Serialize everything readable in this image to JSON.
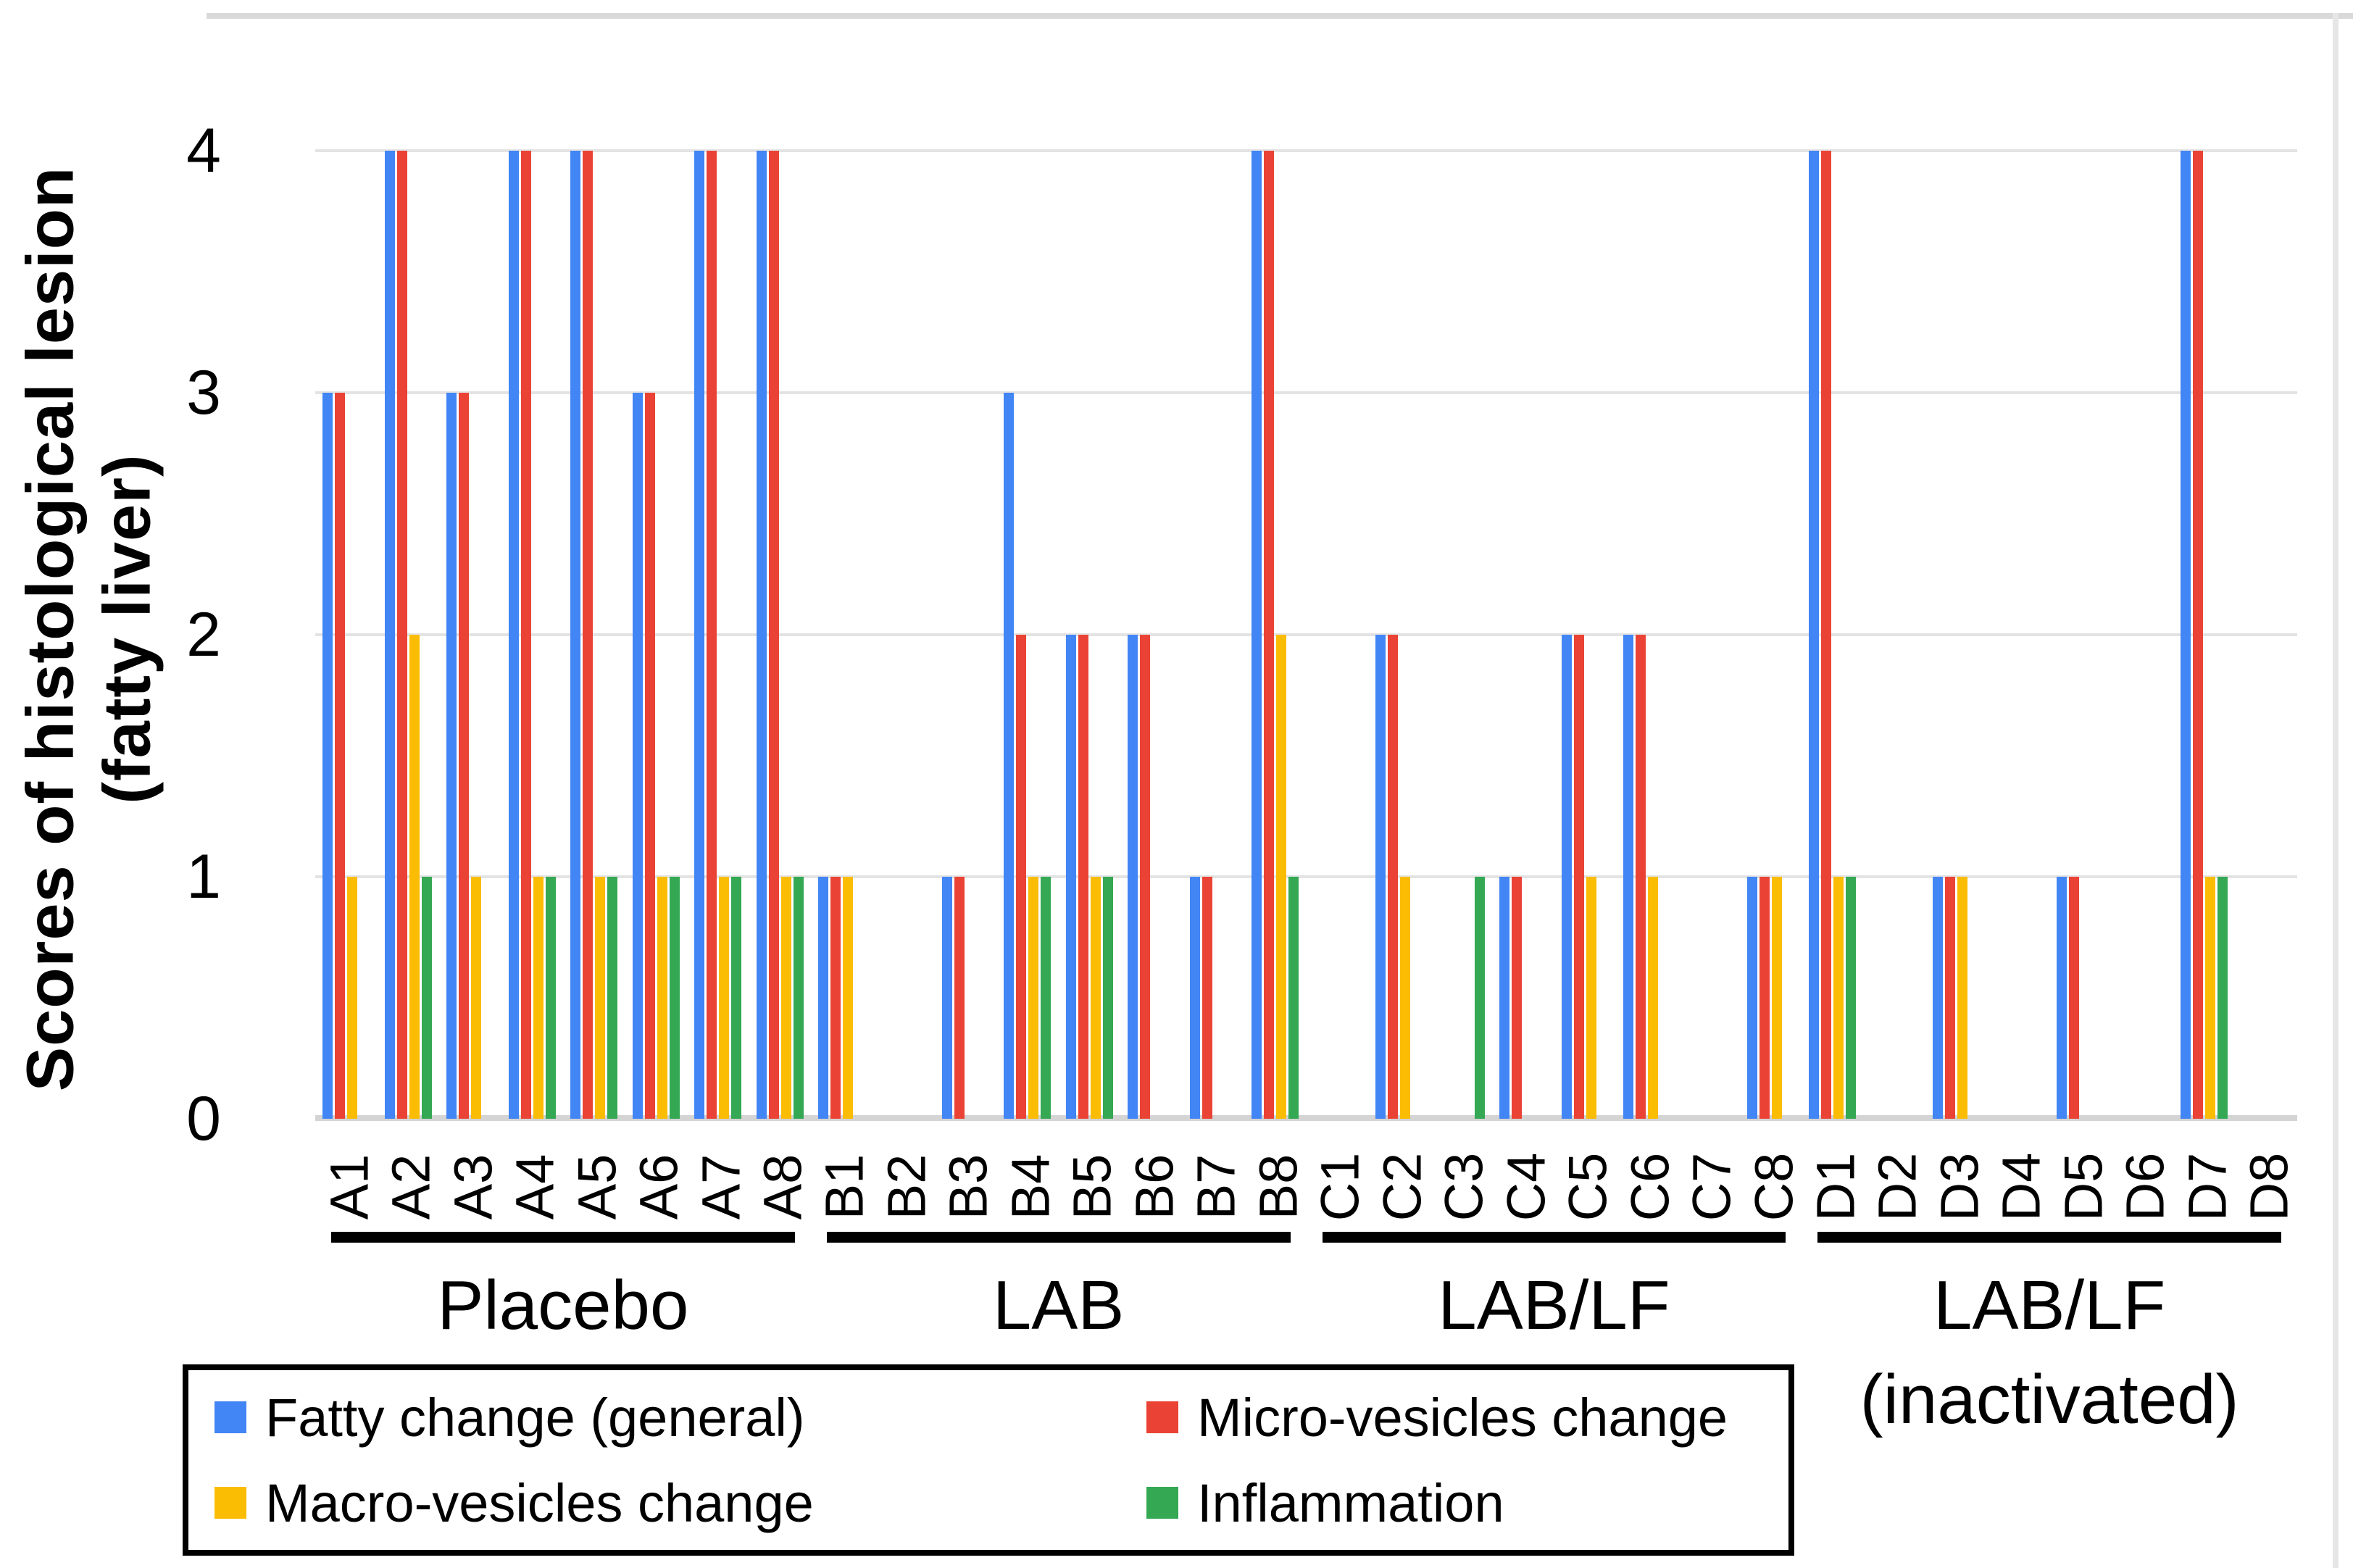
{
  "chart_data": {
    "type": "bar",
    "title": "",
    "ylabel_line1": "Scores of histological lesion",
    "ylabel_line2": "(fatty liver)",
    "xlabel": "",
    "ylim": [
      0,
      4
    ],
    "yticks": [
      "4",
      "3",
      "2",
      "1",
      "0"
    ],
    "grid": true,
    "legend_position": "bottom-left-box",
    "categories": [
      "A1",
      "A2",
      "A3",
      "A4",
      "A5",
      "A6",
      "A7",
      "A8",
      "B1",
      "B2",
      "B3",
      "B4",
      "B5",
      "B6",
      "B7",
      "B8",
      "C1",
      "C2",
      "C3",
      "C4",
      "C5",
      "C6",
      "C7",
      "C8",
      "D1",
      "D2",
      "D3",
      "D4",
      "D5",
      "D6",
      "D7",
      "D8"
    ],
    "groups": [
      {
        "label": "Placebo",
        "label2": "",
        "start": 0,
        "end": 7
      },
      {
        "label": "LAB",
        "label2": "",
        "start": 8,
        "end": 15
      },
      {
        "label": "LAB/LF",
        "label2": "",
        "start": 16,
        "end": 23
      },
      {
        "label": "LAB/LF",
        "label2": "(inactivated)",
        "start": 24,
        "end": 31
      }
    ],
    "series": [
      {
        "name": "Fatty change (general)",
        "color": "#4285F4",
        "values": [
          3,
          4,
          3,
          4,
          4,
          3,
          4,
          4,
          1,
          0,
          1,
          3,
          2,
          2,
          1,
          4,
          0,
          2,
          0,
          1,
          2,
          2,
          0,
          1,
          4,
          0,
          1,
          0,
          1,
          0,
          4,
          0
        ]
      },
      {
        "name": "Micro-vesicles change",
        "color": "#EA4335",
        "values": [
          3,
          4,
          3,
          4,
          4,
          3,
          4,
          4,
          1,
          0,
          1,
          2,
          2,
          2,
          1,
          4,
          0,
          2,
          0,
          1,
          2,
          2,
          0,
          1,
          4,
          0,
          1,
          0,
          1,
          0,
          4,
          0
        ]
      },
      {
        "name": "Macro-vesicles change",
        "color": "#FBBC04",
        "values": [
          1,
          2,
          1,
          1,
          1,
          1,
          1,
          1,
          1,
          0,
          0,
          1,
          1,
          0,
          0,
          2,
          0,
          1,
          0,
          0,
          1,
          1,
          0,
          1,
          1,
          0,
          1,
          0,
          0,
          0,
          1,
          0
        ]
      },
      {
        "name": "Inflammation",
        "color": "#34A853",
        "values": [
          0,
          1,
          0,
          1,
          1,
          1,
          1,
          1,
          0,
          0,
          0,
          1,
          1,
          0,
          0,
          1,
          0,
          0,
          1,
          0,
          0,
          0,
          0,
          0,
          1,
          0,
          0,
          0,
          0,
          0,
          1,
          0
        ]
      }
    ],
    "colors": {
      "gridline": "#e3e3e3",
      "baseline": "#d4d4d4",
      "frame": "#d9d9d9",
      "text": "#000000"
    }
  }
}
